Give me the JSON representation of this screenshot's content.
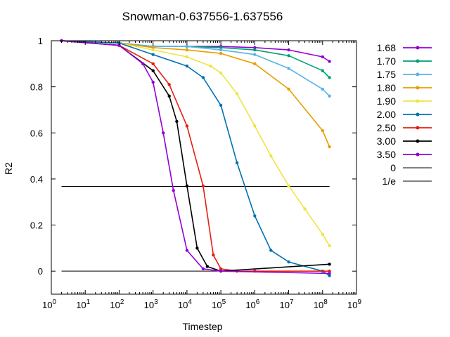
{
  "chart_data": {
    "type": "line",
    "title": "Snowman-0.637556-1.637556",
    "xlabel": "Timestep",
    "ylabel": "R2",
    "xscale": "log",
    "xlim": [
      1,
      1000000000
    ],
    "ylim": [
      -0.1,
      1.0
    ],
    "x_ticks": [
      {
        "base": "10",
        "exp": "0"
      },
      {
        "base": "10",
        "exp": "1"
      },
      {
        "base": "10",
        "exp": "2"
      },
      {
        "base": "10",
        "exp": "3"
      },
      {
        "base": "10",
        "exp": "4"
      },
      {
        "base": "10",
        "exp": "5"
      },
      {
        "base": "10",
        "exp": "6"
      },
      {
        "base": "10",
        "exp": "7"
      },
      {
        "base": "10",
        "exp": "8"
      },
      {
        "base": "10",
        "exp": "9"
      }
    ],
    "y_ticks": [
      "0",
      "0.2",
      "0.4",
      "0.6",
      "0.8",
      "1"
    ],
    "legend_position": "right-outside",
    "grid": false,
    "series": [
      {
        "name": "1.68",
        "color": "#9400d3",
        "x": [
          2,
          100,
          1000,
          10000,
          100000,
          1000000,
          10000000,
          100000000,
          160000000
        ],
        "y": [
          1.0,
          0.99,
          0.975,
          0.975,
          0.975,
          0.97,
          0.96,
          0.93,
          0.91
        ]
      },
      {
        "name": "1.70",
        "color": "#009e73",
        "x": [
          2,
          100,
          1000,
          10000,
          100000,
          1000000,
          10000000,
          100000000,
          160000000
        ],
        "y": [
          1.0,
          0.99,
          0.975,
          0.975,
          0.97,
          0.96,
          0.935,
          0.87,
          0.84
        ]
      },
      {
        "name": "1.75",
        "color": "#56b4e9",
        "x": [
          2,
          100,
          1000,
          10000,
          100000,
          1000000,
          10000000,
          100000000,
          160000000
        ],
        "y": [
          1.0,
          0.99,
          0.975,
          0.975,
          0.96,
          0.94,
          0.88,
          0.79,
          0.76
        ]
      },
      {
        "name": "1.80",
        "color": "#e69f00",
        "x": [
          2,
          100,
          1000,
          10000,
          100000,
          1000000,
          10000000,
          100000000,
          160000000
        ],
        "y": [
          1.0,
          0.99,
          0.97,
          0.96,
          0.945,
          0.9,
          0.79,
          0.61,
          0.54
        ]
      },
      {
        "name": "1.90",
        "color": "#f0e442",
        "x": [
          2,
          100,
          1000,
          10000,
          50000,
          100000,
          300000,
          1000000,
          3000000,
          10000000,
          30000000,
          100000000,
          160000000
        ],
        "y": [
          1.0,
          0.99,
          0.96,
          0.93,
          0.89,
          0.86,
          0.77,
          0.63,
          0.5,
          0.37,
          0.27,
          0.16,
          0.11
        ]
      },
      {
        "name": "2.00",
        "color": "#0072b2",
        "x": [
          2,
          100,
          1000,
          10000,
          30000,
          100000,
          300000,
          1000000,
          3000000,
          10000000,
          100000000,
          160000000
        ],
        "y": [
          1.0,
          0.99,
          0.94,
          0.89,
          0.84,
          0.72,
          0.47,
          0.24,
          0.09,
          0.04,
          0.0,
          -0.02
        ]
      },
      {
        "name": "2.50",
        "color": "#e51e10",
        "x": [
          2,
          100,
          1000,
          3000,
          10000,
          30000,
          60000,
          100000,
          300000,
          1000000,
          160000000
        ],
        "y": [
          1.0,
          0.98,
          0.9,
          0.81,
          0.63,
          0.37,
          0.07,
          0.01,
          0.0,
          0.0,
          0.0
        ]
      },
      {
        "name": "3.00",
        "color": "#000000",
        "x": [
          2,
          100,
          1000,
          3000,
          5000,
          10000,
          20000,
          40000,
          100000,
          160000000
        ],
        "y": [
          1.0,
          0.98,
          0.87,
          0.76,
          0.65,
          0.37,
          0.1,
          0.02,
          0.0,
          0.03
        ]
      },
      {
        "name": "3.50",
        "color": "#9400d3",
        "x": [
          2,
          100,
          500,
          1000,
          2000,
          4000,
          10000,
          30000,
          100000,
          160000000
        ],
        "y": [
          1.0,
          0.98,
          0.9,
          0.82,
          0.6,
          0.35,
          0.09,
          0.01,
          0.0,
          -0.01
        ]
      }
    ],
    "reference_lines": [
      {
        "name": "0",
        "y": 0,
        "color": "#000000"
      },
      {
        "name": "1/e",
        "y": 0.367879,
        "color": "#000000"
      }
    ]
  }
}
